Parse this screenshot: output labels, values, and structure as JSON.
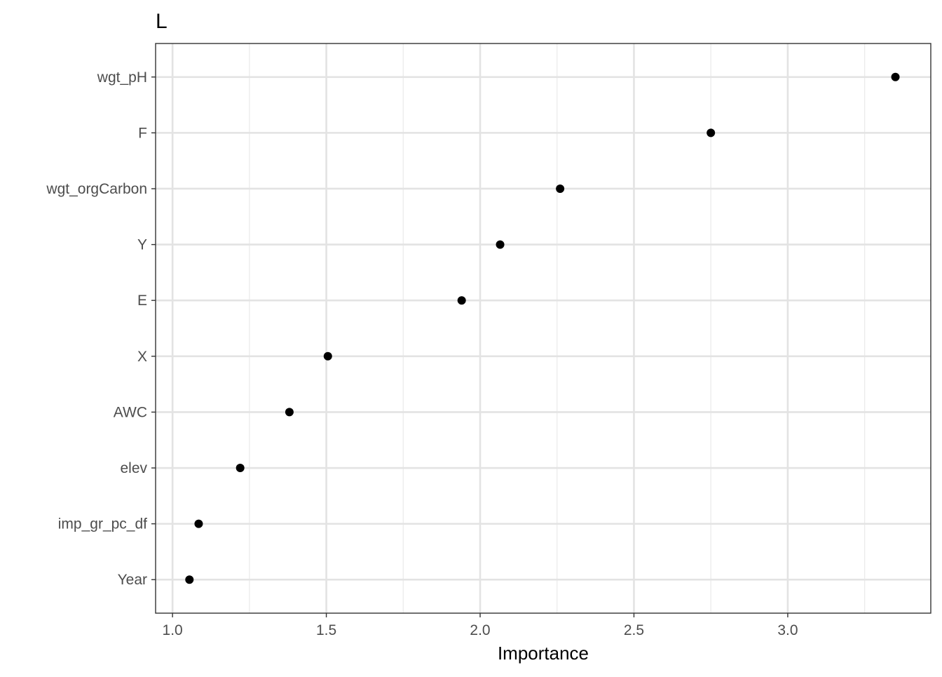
{
  "chart_data": {
    "type": "scatter",
    "title": "L",
    "xlabel": "Importance",
    "ylabel": "",
    "xlim": [
      0.945,
      3.465
    ],
    "x_ticks": [
      1.0,
      1.5,
      2.0,
      2.5,
      3.0
    ],
    "x_tick_labels": [
      "1.0",
      "1.5",
      "2.0",
      "2.5",
      "3.0"
    ],
    "x_minor_ticks": [
      1.25,
      1.75,
      2.25,
      2.75,
      3.25
    ],
    "grid": true,
    "legend": "none",
    "point_color": "#000000",
    "categories": [
      "Year",
      "imp_gr_pc_df",
      "elev",
      "AWC",
      "X",
      "E",
      "Y",
      "wgt_orgCarbon",
      "F",
      "wgt_pH"
    ],
    "values": [
      1.055,
      1.085,
      1.22,
      1.38,
      1.505,
      1.94,
      2.065,
      2.26,
      2.75,
      3.35
    ]
  }
}
